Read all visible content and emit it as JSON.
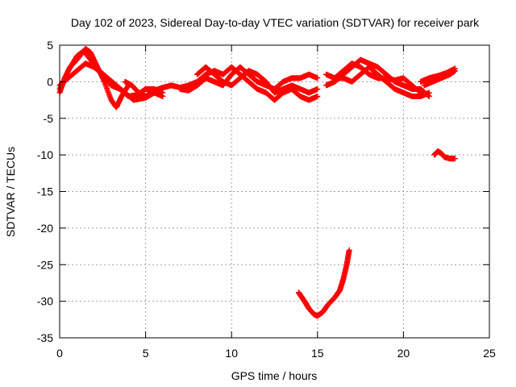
{
  "chart_data": {
    "type": "scatter",
    "title": "Day 102 of 2023, Sidereal Day-to-day VTEC variation (SDTVAR) for receiver park",
    "xlabel": "GPS time / hours",
    "ylabel": "SDTVAR / TECUs",
    "xlim": [
      0,
      25
    ],
    "ylim": [
      -35,
      5
    ],
    "xticks": [
      "0",
      "5",
      "10",
      "15",
      "20",
      "25"
    ],
    "yticks": [
      "5",
      "0",
      "-5",
      "-10",
      "-15",
      "-20",
      "-25",
      "-30",
      "-35"
    ],
    "grid": true,
    "marker": "plus",
    "color": "#ff0000",
    "series": [
      {
        "points": [
          [
            0,
            -1.5
          ],
          [
            0.3,
            0.5
          ],
          [
            0.6,
            2
          ],
          [
            1,
            3
          ],
          [
            1.5,
            4.5
          ],
          [
            1.8,
            4
          ],
          [
            2.2,
            2
          ],
          [
            2.6,
            0
          ],
          [
            3,
            -2.5
          ],
          [
            3.3,
            -3.5
          ],
          [
            3.6,
            -2
          ],
          [
            4,
            -0.5
          ]
        ]
      },
      {
        "points": [
          [
            0,
            -1
          ],
          [
            0.5,
            1.5
          ],
          [
            1,
            3.5
          ],
          [
            1.4,
            4.2
          ],
          [
            1.8,
            3
          ],
          [
            2.3,
            1.5
          ],
          [
            2.8,
            0.5
          ],
          [
            3.3,
            -0.5
          ],
          [
            3.8,
            -1.5
          ],
          [
            4.3,
            -2.5
          ],
          [
            5,
            -2.2
          ],
          [
            5.5,
            -1.5
          ],
          [
            6,
            -2
          ]
        ]
      },
      {
        "points": [
          [
            0,
            -0.5
          ],
          [
            0.5,
            0.5
          ],
          [
            1,
            1.5
          ],
          [
            1.5,
            2.5
          ],
          [
            2,
            2
          ],
          [
            2.5,
            1
          ],
          [
            3,
            -0.5
          ],
          [
            3.5,
            -1
          ],
          [
            4,
            -2
          ],
          [
            4.5,
            -1.8
          ],
          [
            5,
            -1
          ],
          [
            5.5,
            -1
          ],
          [
            6,
            -1.5
          ]
        ]
      },
      {
        "points": [
          [
            3.8,
            0
          ],
          [
            4.2,
            -0.5
          ],
          [
            4.6,
            -1.5
          ],
          [
            5,
            -2
          ],
          [
            5.5,
            -1.2
          ],
          [
            6,
            -0.8
          ],
          [
            6.5,
            -0.5
          ],
          [
            7,
            -0.8
          ],
          [
            7.5,
            -0.5
          ],
          [
            8,
            0
          ],
          [
            8.5,
            1
          ],
          [
            9,
            1.5
          ],
          [
            9.5,
            1
          ],
          [
            10,
            2
          ],
          [
            10.5,
            1
          ],
          [
            11,
            0
          ],
          [
            11.5,
            -1
          ],
          [
            12,
            -1.5
          ],
          [
            12.5,
            -2.5
          ],
          [
            13,
            -1.5
          ],
          [
            13.5,
            -1
          ],
          [
            14,
            -2
          ],
          [
            14.5,
            -2.5
          ],
          [
            15,
            -2
          ]
        ]
      },
      {
        "points": [
          [
            7,
            -1
          ],
          [
            7.5,
            -1.2
          ],
          [
            8,
            -0.5
          ],
          [
            8.5,
            0.5
          ],
          [
            9,
            0
          ],
          [
            9.5,
            -0.5
          ],
          [
            10,
            1
          ],
          [
            10.5,
            2
          ],
          [
            11,
            1
          ],
          [
            11.5,
            0
          ],
          [
            12,
            -0.5
          ],
          [
            12.5,
            -1
          ],
          [
            13,
            0
          ],
          [
            13.5,
            0.5
          ],
          [
            14,
            0.5
          ],
          [
            14.5,
            1
          ],
          [
            15,
            0.5
          ]
        ]
      },
      {
        "points": [
          [
            8,
            1
          ],
          [
            8.5,
            2
          ],
          [
            9,
            1
          ],
          [
            9.5,
            0
          ],
          [
            10,
            -0.5
          ],
          [
            10.5,
            0.5
          ],
          [
            11,
            1.5
          ],
          [
            11.5,
            1
          ],
          [
            12,
            0
          ],
          [
            12.5,
            -1.5
          ],
          [
            13,
            -1
          ],
          [
            13.5,
            -0.5
          ],
          [
            14,
            -1
          ],
          [
            14.5,
            -1.5
          ],
          [
            15,
            -1
          ]
        ]
      },
      {
        "points": [
          [
            15.5,
            1
          ],
          [
            16,
            0.5
          ],
          [
            16.5,
            0.5
          ],
          [
            17,
            0
          ],
          [
            17.5,
            1
          ],
          [
            18,
            2
          ],
          [
            18.5,
            1
          ],
          [
            19,
            0
          ],
          [
            19.5,
            -1
          ],
          [
            20,
            -1.5
          ],
          [
            20.5,
            -2
          ],
          [
            21,
            -2
          ],
          [
            21.5,
            -1.5
          ]
        ]
      },
      {
        "points": [
          [
            15.5,
            -0.5
          ],
          [
            16,
            0
          ],
          [
            16.5,
            1
          ],
          [
            17,
            2
          ],
          [
            17.5,
            3
          ],
          [
            18,
            2.5
          ],
          [
            18.5,
            2
          ],
          [
            19,
            1
          ],
          [
            19.5,
            0
          ],
          [
            20,
            -0.5
          ],
          [
            20.5,
            -1
          ],
          [
            21,
            -1
          ],
          [
            21.5,
            -2
          ]
        ]
      },
      {
        "points": [
          [
            16,
            0.5
          ],
          [
            16.5,
            1.5
          ],
          [
            17,
            2.5
          ],
          [
            17.5,
            2
          ],
          [
            18,
            1
          ],
          [
            18.5,
            0.5
          ],
          [
            19,
            0.5
          ],
          [
            19.5,
            0.2
          ],
          [
            20,
            0.5
          ],
          [
            20.5,
            -0.5
          ],
          [
            21,
            -1.5
          ]
        ]
      },
      {
        "points": [
          [
            21,
            0
          ],
          [
            21.5,
            0.5
          ],
          [
            22,
            0.8
          ],
          [
            22.5,
            1.2
          ],
          [
            23,
            1.8
          ]
        ]
      },
      {
        "points": [
          [
            21.2,
            -0.5
          ],
          [
            21.7,
            0
          ],
          [
            22.2,
            0.5
          ],
          [
            22.7,
            1
          ],
          [
            23,
            1.5
          ]
        ]
      },
      {
        "points": [
          [
            21.8,
            -10
          ],
          [
            22,
            -9.5
          ],
          [
            22.2,
            -9.8
          ],
          [
            22.4,
            -10.3
          ],
          [
            22.7,
            -10.5
          ],
          [
            23,
            -10.5
          ]
        ]
      },
      {
        "points": [
          [
            13.9,
            -28.8
          ],
          [
            14.1,
            -29.5
          ],
          [
            14.3,
            -30.2
          ],
          [
            14.5,
            -31
          ],
          [
            14.8,
            -31.8
          ],
          [
            15,
            -32
          ],
          [
            15.3,
            -31.5
          ],
          [
            15.6,
            -30.5
          ],
          [
            16,
            -29.5
          ],
          [
            16.3,
            -28.5
          ],
          [
            16.5,
            -27
          ],
          [
            16.7,
            -25
          ],
          [
            16.85,
            -23
          ]
        ]
      }
    ]
  }
}
